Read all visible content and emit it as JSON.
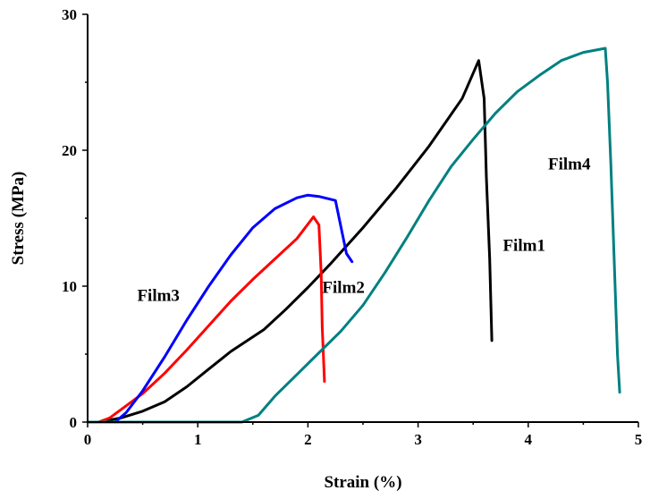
{
  "chart_data": {
    "type": "line",
    "title": "",
    "xlabel": "Strain (%)",
    "ylabel": "Stress (MPa)",
    "xlim": [
      0,
      5
    ],
    "ylim": [
      0,
      30
    ],
    "x_ticks": [
      0,
      1,
      2,
      3,
      4,
      5
    ],
    "y_ticks": [
      0,
      10,
      20,
      30
    ],
    "x_tick_labels": [
      "0",
      "1",
      "2",
      "3",
      "4",
      "5"
    ],
    "y_tick_labels": [
      "0",
      "10",
      "20",
      "30"
    ],
    "grid": false,
    "legend": "none",
    "series": [
      {
        "name": "Film1",
        "color": "#000000",
        "label_pos": [
          3.77,
          12.6
        ],
        "points": [
          [
            0.1,
            0
          ],
          [
            0.3,
            0.3
          ],
          [
            0.5,
            0.8
          ],
          [
            0.7,
            1.5
          ],
          [
            0.9,
            2.6
          ],
          [
            1.1,
            3.9
          ],
          [
            1.3,
            5.2
          ],
          [
            1.6,
            6.8
          ],
          [
            1.8,
            8.3
          ],
          [
            2.0,
            9.9
          ],
          [
            2.2,
            11.6
          ],
          [
            2.5,
            14.3
          ],
          [
            2.8,
            17.2
          ],
          [
            3.1,
            20.3
          ],
          [
            3.4,
            23.8
          ],
          [
            3.55,
            26.6
          ],
          [
            3.6,
            23.8
          ],
          [
            3.62,
            18
          ],
          [
            3.65,
            12
          ],
          [
            3.67,
            6
          ]
        ]
      },
      {
        "name": "Film2",
        "color": "#ff0000",
        "label_pos": [
          2.13,
          9.5
        ],
        "points": [
          [
            0.1,
            0
          ],
          [
            0.2,
            0.3
          ],
          [
            0.3,
            0.9
          ],
          [
            0.5,
            2.1
          ],
          [
            0.7,
            3.6
          ],
          [
            0.9,
            5.3
          ],
          [
            1.1,
            7.1
          ],
          [
            1.3,
            8.9
          ],
          [
            1.5,
            10.5
          ],
          [
            1.7,
            12.0
          ],
          [
            1.9,
            13.5
          ],
          [
            2.05,
            15.1
          ],
          [
            2.1,
            14.5
          ],
          [
            2.12,
            11
          ],
          [
            2.13,
            7
          ],
          [
            2.15,
            3
          ]
        ]
      },
      {
        "name": "Film3",
        "color": "#0000ff",
        "label_pos": [
          0.45,
          8.9
        ],
        "points": [
          [
            0.25,
            0
          ],
          [
            0.35,
            0.7
          ],
          [
            0.5,
            2.3
          ],
          [
            0.7,
            4.8
          ],
          [
            0.9,
            7.5
          ],
          [
            1.1,
            10.0
          ],
          [
            1.3,
            12.3
          ],
          [
            1.5,
            14.3
          ],
          [
            1.7,
            15.7
          ],
          [
            1.9,
            16.5
          ],
          [
            2.0,
            16.7
          ],
          [
            2.1,
            16.6
          ],
          [
            2.25,
            16.3
          ],
          [
            2.35,
            12.4
          ],
          [
            2.4,
            11.8
          ]
        ]
      },
      {
        "name": "Film4",
        "color": "#008080",
        "label_pos": [
          4.18,
          18.6
        ],
        "points": [
          [
            0,
            0
          ],
          [
            1.4,
            0
          ],
          [
            1.55,
            0.5
          ],
          [
            1.7,
            1.9
          ],
          [
            1.9,
            3.5
          ],
          [
            2.1,
            5.1
          ],
          [
            2.3,
            6.7
          ],
          [
            2.5,
            8.6
          ],
          [
            2.7,
            11.0
          ],
          [
            2.9,
            13.6
          ],
          [
            3.1,
            16.3
          ],
          [
            3.3,
            18.8
          ],
          [
            3.5,
            20.8
          ],
          [
            3.7,
            22.7
          ],
          [
            3.9,
            24.3
          ],
          [
            4.1,
            25.5
          ],
          [
            4.3,
            26.6
          ],
          [
            4.5,
            27.2
          ],
          [
            4.7,
            27.5
          ],
          [
            4.72,
            25
          ],
          [
            4.75,
            19
          ],
          [
            4.78,
            12
          ],
          [
            4.81,
            5
          ],
          [
            4.83,
            2.2
          ]
        ]
      }
    ]
  }
}
